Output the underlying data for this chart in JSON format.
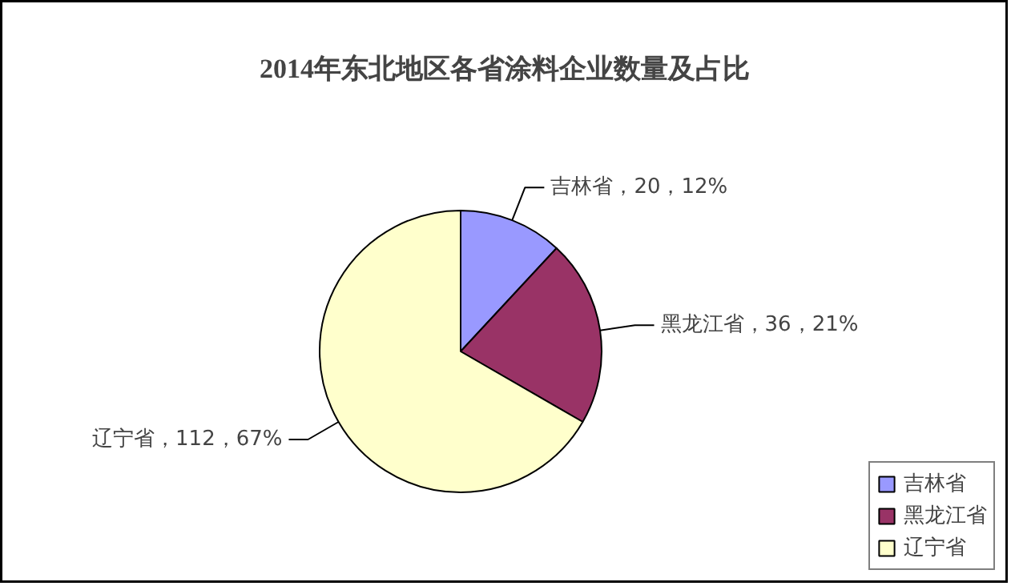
{
  "chart_data": {
    "type": "pie",
    "title": "2014年东北地区各省涂料企业数量及占比",
    "categories": [
      "吉林省",
      "黑龙江省",
      "辽宁省"
    ],
    "values": [
      20,
      36,
      112
    ],
    "colors": [
      "#9999ff",
      "#993366",
      "#ffffcc"
    ],
    "value_labels": [
      "吉林省，20，12%",
      "黑龙江省，36，21%",
      "辽宁省，112，67%"
    ],
    "legend": "bottom right"
  }
}
